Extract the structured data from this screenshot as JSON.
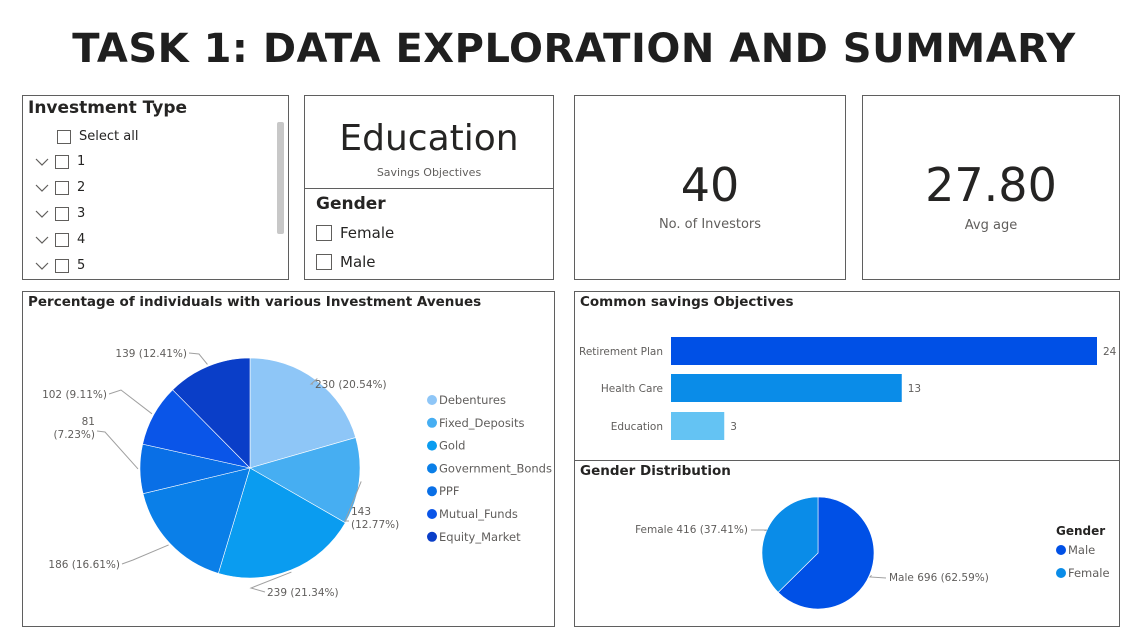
{
  "page_title": "TASK 1: DATA EXPLORATION AND SUMMARY",
  "investment_slicer": {
    "title": "Investment Type",
    "select_all": "Select all",
    "items": [
      "1",
      "2",
      "3",
      "4",
      "5"
    ]
  },
  "savings_card": {
    "value": "Education",
    "label": "Savings Objectives"
  },
  "gender_slicer": {
    "title": "Gender",
    "items": [
      "Female",
      "Male"
    ]
  },
  "investors_card": {
    "value": "40",
    "label": "No. of Investors"
  },
  "avg_age_card": {
    "value": "27.80",
    "label": "Avg age"
  },
  "colors": {
    "accent": "#0050e6",
    "border": "#5f5f5f"
  },
  "chart_data": [
    {
      "type": "pie",
      "title": "Percentage of individuals with various Investment Avenues",
      "categories": [
        "Debentures",
        "Fixed_Deposits",
        "Gold",
        "Government_Bonds",
        "PPF",
        "Mutual_Funds",
        "Equity_Market"
      ],
      "values": [
        230,
        143,
        239,
        186,
        81,
        102,
        139
      ],
      "data_labels": [
        "230 (20.54%)",
        "143 (12.77%)",
        "239 (21.34%)",
        "186 (16.61%)",
        "81 (7.23%)",
        "102 (9.11%)",
        "139 (12.41%)"
      ],
      "colors": [
        "#8ec6f7",
        "#46aef2",
        "#0a9cf0",
        "#0a7fe8",
        "#096fe6",
        "#0a55e8",
        "#0a3ec8"
      ],
      "legend": "right"
    },
    {
      "type": "bar",
      "orientation": "horizontal",
      "title": "Common savings Objectives",
      "categories": [
        "Retirement Plan",
        "Health Care",
        "Education"
      ],
      "values": [
        24,
        13,
        3
      ],
      "colors": [
        "#0050e6",
        "#0a8ce8",
        "#64c3f3"
      ]
    },
    {
      "type": "pie",
      "title": "Gender Distribution",
      "categories": [
        "Male",
        "Female"
      ],
      "values": [
        696,
        416
      ],
      "data_labels": [
        "Male 696 (62.59%)",
        "Female 416 (37.41%)"
      ],
      "colors": [
        "#0050e6",
        "#0a8ce8"
      ],
      "legend_title": "Gender",
      "legend": "right"
    }
  ]
}
